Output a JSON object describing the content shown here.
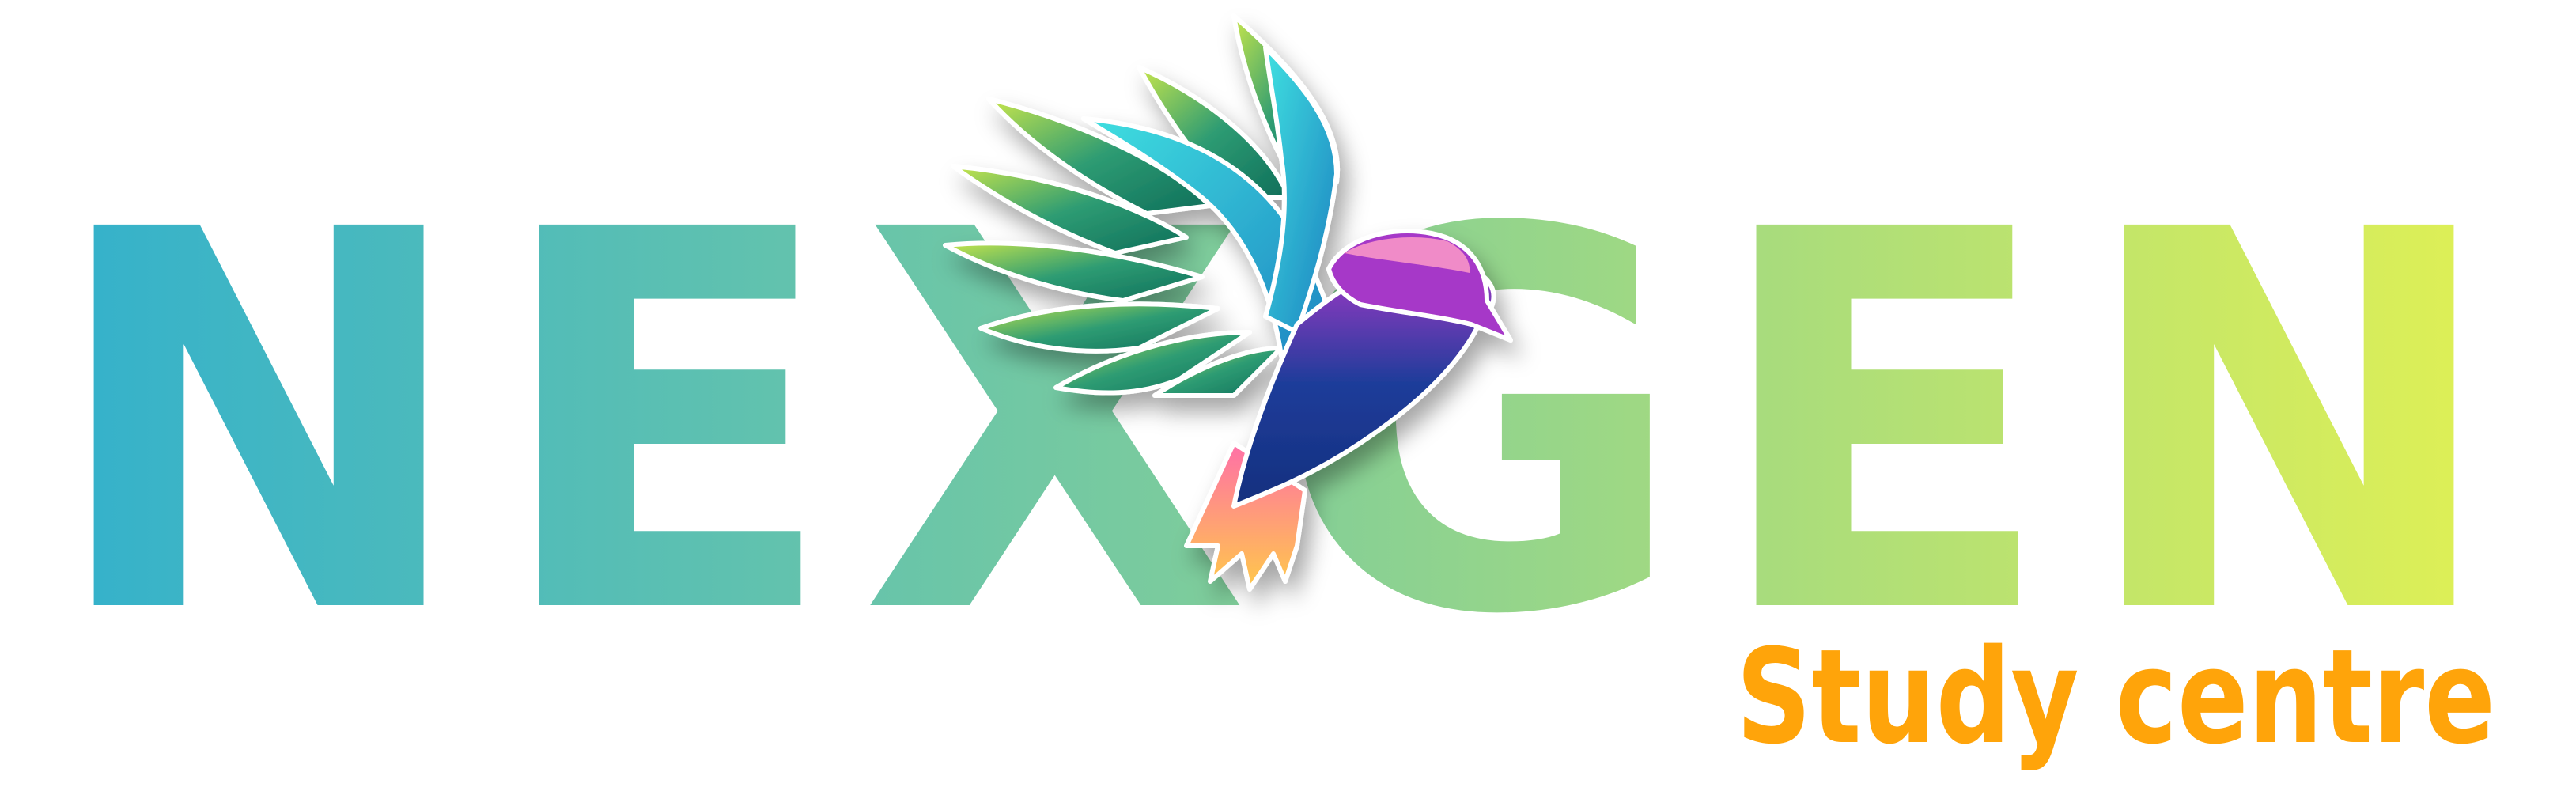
{
  "brand": {
    "wordmark": "NEXGEN",
    "tagline": "Study centre",
    "gradient_start": "#33B1CC",
    "gradient_mid": "#7ACB9E",
    "gradient_end": "#E2F153",
    "tagline_color": "#FFA40A"
  },
  "emblem": {
    "icon": "hummingbird-icon",
    "colors": {
      "wing_green": "#2E9C73",
      "wing_light": "#C8E64B",
      "wing_cyan": "#3FE0E0",
      "body_blue": "#1E3C9A",
      "head_purple": "#A638C8",
      "tail_pink": "#FF6FA8",
      "tail_yellow": "#FFC94A"
    }
  }
}
